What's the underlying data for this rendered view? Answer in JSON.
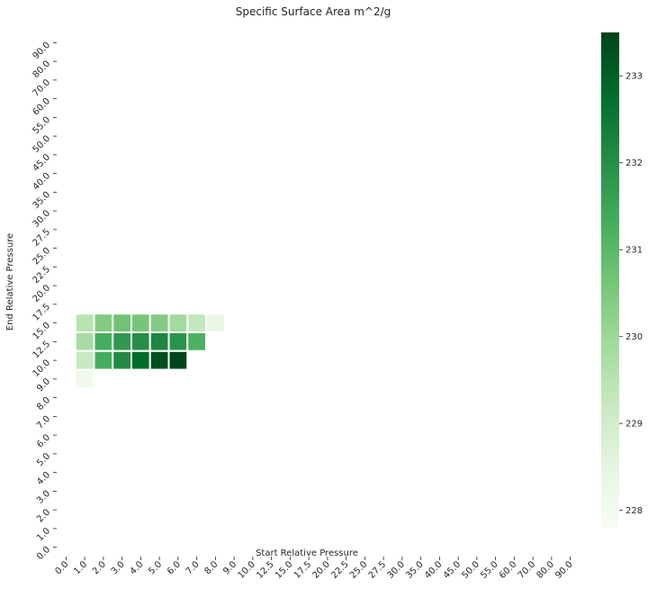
{
  "chart_data": {
    "type": "heatmap",
    "title": "Specific Surface Area m^2/g",
    "xlabel": "Start Relative Pressure",
    "ylabel": "End Relative Pressure",
    "x_categories": [
      "0.0",
      "1.0",
      "2.0",
      "3.0",
      "4.0",
      "5.0",
      "6.0",
      "7.0",
      "8.0",
      "9.0",
      "10.0",
      "12.5",
      "15.0",
      "17.5",
      "20.0",
      "22.5",
      "25.0",
      "27.5",
      "30.0",
      "35.0",
      "40.0",
      "45.0",
      "50.0",
      "55.0",
      "60.0",
      "70.0",
      "80.0",
      "90.0"
    ],
    "y_categories": [
      "90.0",
      "80.0",
      "70.0",
      "60.0",
      "55.0",
      "50.0",
      "45.0",
      "40.0",
      "35.0",
      "30.0",
      "27.5",
      "25.0",
      "22.5",
      "20.0",
      "17.5",
      "15.0",
      "12.5",
      "10.0",
      "9.0",
      "8.0",
      "7.0",
      "6.0",
      "5.0",
      "4.0",
      "3.0",
      "2.0",
      "1.0",
      "0.0"
    ],
    "cells": [
      {
        "x": "1.0",
        "y": "15.0",
        "value": 229.5
      },
      {
        "x": "2.0",
        "y": "15.0",
        "value": 230.4
      },
      {
        "x": "3.0",
        "y": "15.0",
        "value": 230.7
      },
      {
        "x": "4.0",
        "y": "15.0",
        "value": 230.6
      },
      {
        "x": "5.0",
        "y": "15.0",
        "value": 230.4
      },
      {
        "x": "6.0",
        "y": "15.0",
        "value": 229.9
      },
      {
        "x": "7.0",
        "y": "15.0",
        "value": 229.3
      },
      {
        "x": "8.0",
        "y": "15.0",
        "value": 228.4
      },
      {
        "x": "1.0",
        "y": "12.5",
        "value": 229.8
      },
      {
        "x": "2.0",
        "y": "12.5",
        "value": 231.3
      },
      {
        "x": "3.0",
        "y": "12.5",
        "value": 231.8
      },
      {
        "x": "4.0",
        "y": "12.5",
        "value": 232.0
      },
      {
        "x": "5.0",
        "y": "12.5",
        "value": 232.2
      },
      {
        "x": "6.0",
        "y": "12.5",
        "value": 231.9
      },
      {
        "x": "7.0",
        "y": "12.5",
        "value": 231.2
      },
      {
        "x": "1.0",
        "y": "10.0",
        "value": 229.2
      },
      {
        "x": "2.0",
        "y": "10.0",
        "value": 231.3
      },
      {
        "x": "3.0",
        "y": "10.0",
        "value": 232.1
      },
      {
        "x": "4.0",
        "y": "10.0",
        "value": 232.8
      },
      {
        "x": "5.0",
        "y": "10.0",
        "value": 233.3
      },
      {
        "x": "6.0",
        "y": "10.0",
        "value": 233.5
      },
      {
        "x": "1.0",
        "y": "9.0",
        "value": 228.1
      }
    ],
    "colorbar": {
      "ticks": [
        228,
        229,
        230,
        231,
        232,
        233
      ],
      "min": 227.8,
      "max": 233.5,
      "colormap": "Greens"
    }
  }
}
